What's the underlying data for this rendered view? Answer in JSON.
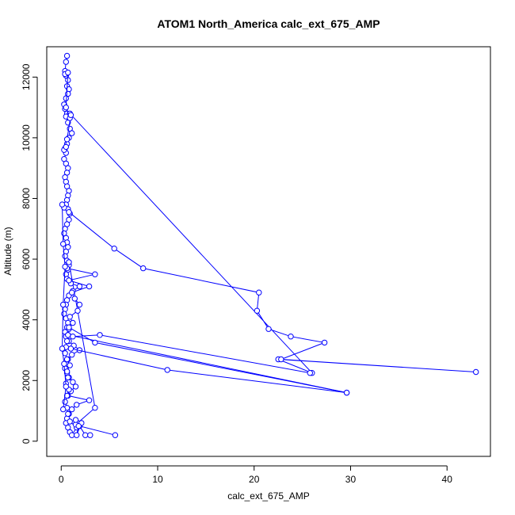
{
  "chart_data": {
    "type": "line",
    "title": "ATOM1 North_America calc_ext_675_AMP",
    "xlabel": "calc_ext_675_AMP",
    "ylabel": "Altitude (m)",
    "xlim": [
      -1.5,
      44.5
    ],
    "ylim": [
      -500,
      13000
    ],
    "x_ticks": [
      0,
      10,
      20,
      30,
      40
    ],
    "y_ticks": [
      0,
      2000,
      4000,
      6000,
      8000,
      10000,
      12000
    ],
    "grid": false,
    "color": "#0000ff",
    "series": [
      {
        "x": [
          0.6,
          0.5,
          0.4,
          0.5,
          0.7,
          0.6,
          0.8,
          0.7,
          0.5,
          0.3,
          0.4,
          0.6,
          0.5,
          0.7,
          0.9,
          1.1,
          0.8,
          0.6,
          0.4,
          0.5,
          0.3,
          0.5,
          0.7,
          0.6,
          0.4,
          0.5,
          0.6,
          0.8,
          0.7,
          0.6,
          0.5,
          0.7,
          0.9,
          0.8,
          0.6,
          0.4,
          0.3,
          0.5,
          0.6,
          0.7,
          0.5,
          0.4,
          0.6,
          0.8,
          0.7,
          0.5,
          0.6,
          1.0,
          1.9,
          1.2,
          0.8,
          0.6,
          0.5,
          0.4,
          0.3,
          0.5,
          0.7,
          0.6,
          0.4,
          0.5,
          0.8,
          1.3,
          1.9,
          1.1,
          0.7,
          0.5,
          0.4,
          0.6,
          0.8,
          1.2,
          1.5,
          1.0,
          0.7,
          2.9,
          1.6,
          1.1,
          0.8,
          0.6,
          0.5,
          0.7,
          0.9,
          1.1,
          1.6,
          0.9,
          0.7,
          0.6,
          0.4,
          0.6,
          0.8,
          0.5,
          0.7,
          0.6,
          0.9,
          0.6,
          0.4,
          0.5,
          0.6,
          0.7,
          0.8,
          1.2,
          0.9,
          1.7,
          1.9,
          1.4,
          1.1,
          2.9,
          0.8,
          3.5,
          0.6,
          0.8,
          3.5,
          1.7,
          1.9,
          5.6
        ],
        "y": [
          12700,
          12500,
          12200,
          12050,
          11900,
          11700,
          11600,
          11450,
          11300,
          11100,
          10950,
          10800,
          10700,
          10500,
          10300,
          10150,
          10000,
          9800,
          9650,
          9500,
          9300,
          9150,
          9000,
          8850,
          8700,
          8550,
          8400,
          8250,
          8100,
          7950,
          7800,
          7650,
          7500,
          7300,
          7150,
          7000,
          6850,
          6700,
          6550,
          6400,
          6250,
          6100,
          5950,
          5800,
          5650,
          5500,
          5350,
          5200,
          5100,
          4950,
          4800,
          4650,
          4500,
          4350,
          4200,
          4050,
          3900,
          3750,
          3600,
          3450,
          3300,
          3150,
          3000,
          2850,
          2700,
          2550,
          2400,
          2250,
          2100,
          1950,
          1800,
          1650,
          1500,
          1350,
          1200,
          1050,
          900,
          750,
          600,
          450,
          300,
          200,
          450,
          650,
          900,
          1100,
          1300,
          1500,
          1700,
          1900,
          2100,
          2300,
          2500,
          2700,
          2900,
          3100,
          3300,
          3500,
          3700,
          3900,
          4100,
          4300,
          4500,
          4700,
          4900,
          5100,
          5300,
          5500,
          5700,
          5900,
          1100,
          600,
          500,
          200
        ]
      },
      {
        "x": [
          0.9,
          26.0,
          22.5,
          43.0,
          22.8,
          27.3,
          23.8,
          21.5,
          20.3,
          20.5,
          8.5,
          5.5,
          0.8
        ],
        "y": [
          10800,
          2250,
          2700,
          2280,
          2700,
          3250,
          3450,
          3700,
          4300,
          4900,
          5700,
          6350,
          7550
        ]
      },
      {
        "x": [
          0.7,
          29.6,
          11.0,
          1.0
        ],
        "y": [
          3500,
          1600,
          2350,
          3050
        ]
      },
      {
        "x": [
          0.8,
          3.5,
          29.6
        ],
        "y": [
          3750,
          3250,
          1600
        ]
      },
      {
        "x": [
          1.2,
          4.0,
          25.8
        ],
        "y": [
          3450,
          3500,
          2250
        ]
      },
      {
        "x": [
          0.4,
          0.7,
          0.5,
          0.9,
          1.0,
          0.6,
          0.3,
          0.5
        ],
        "y": [
          12100,
          12150,
          11000,
          10650,
          10750,
          9950,
          9600,
          9700
        ]
      },
      {
        "x": [
          1.5,
          2.1,
          1.6,
          1.8,
          1.5,
          2.5,
          3.0
        ],
        "y": [
          550,
          600,
          200,
          500,
          700,
          200,
          200
        ]
      },
      {
        "x": [
          0.3,
          0.1,
          0.2,
          0.4,
          0.2,
          0.1,
          0.3,
          0.5,
          0.2
        ],
        "y": [
          7700,
          7800,
          6500,
          5750,
          4500,
          3050,
          2550,
          1800,
          1050
        ]
      }
    ]
  }
}
